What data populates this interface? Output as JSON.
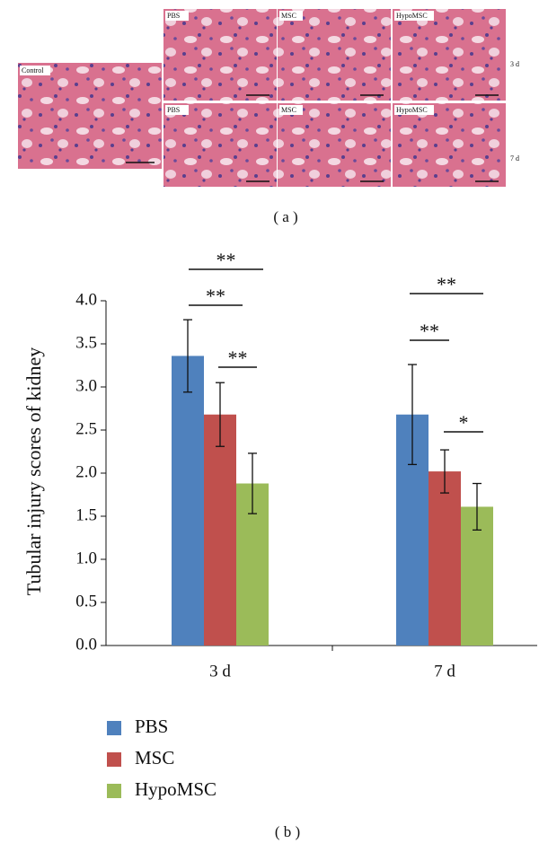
{
  "figure": {
    "panel_a": {
      "label": "( a )",
      "control": "Control",
      "rows": [
        {
          "time": "3 d",
          "panels": [
            "PBS",
            "MSC",
            "HypoMSC"
          ]
        },
        {
          "time": "7 d",
          "panels": [
            "PBS",
            "MSC",
            "HypoMSC"
          ]
        }
      ]
    },
    "panel_b_label": "( b )"
  },
  "chart_data": {
    "type": "bar",
    "ylabel": "Tubular injury scores of kidney",
    "categories": [
      "3 d",
      "7 d"
    ],
    "series": [
      {
        "name": "PBS",
        "color": "#4f81bd",
        "values": [
          3.36,
          2.68
        ],
        "errors": [
          0.42,
          0.58
        ]
      },
      {
        "name": "MSC",
        "color": "#c0504d",
        "values": [
          2.68,
          2.02
        ],
        "errors": [
          0.37,
          0.25
        ]
      },
      {
        "name": "HypoMSC",
        "color": "#9bbb59",
        "values": [
          1.88,
          1.61
        ],
        "errors": [
          0.35,
          0.27
        ]
      }
    ],
    "ylim": [
      0,
      4
    ],
    "yticks": [
      {
        "value": 0,
        "label": "0.0"
      },
      {
        "value": 0.5,
        "label": "0.5"
      },
      {
        "value": 1,
        "label": "1.0"
      },
      {
        "value": 1.5,
        "label": "1.5"
      },
      {
        "value": 2,
        "label": "2.0"
      },
      {
        "value": 2.5,
        "label": "2.5"
      },
      {
        "value": 3,
        "label": "3.0"
      },
      {
        "value": 3.5,
        "label": "3.5"
      },
      {
        "value": 4,
        "label": "4.0"
      }
    ],
    "annotations": [
      "**",
      "**",
      "**",
      "**",
      "**",
      "*"
    ]
  }
}
